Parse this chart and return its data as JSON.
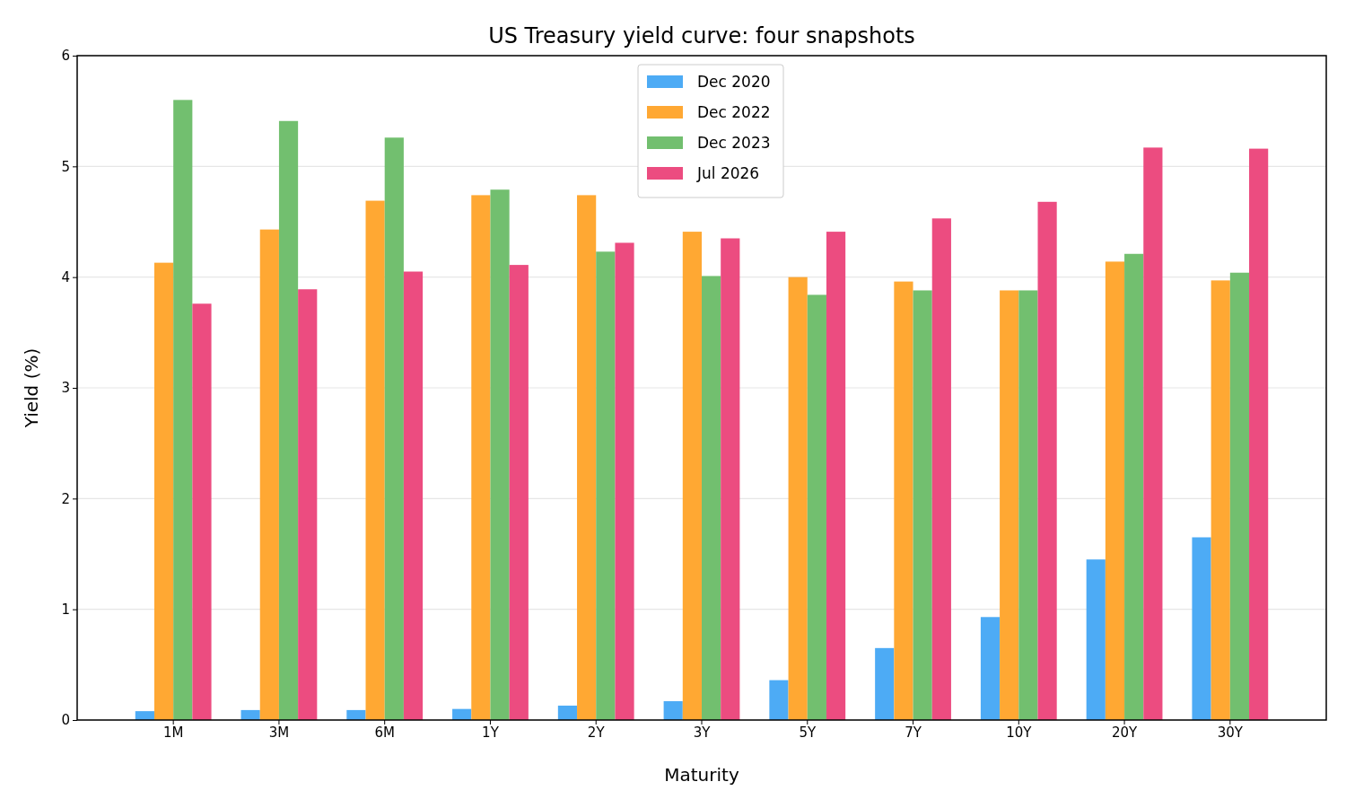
{
  "chart_data": {
    "type": "bar",
    "title": "US Treasury yield curve: four snapshots",
    "xlabel": "Maturity",
    "ylabel": "Yield (%)",
    "categories": [
      "1M",
      "3M",
      "6M",
      "1Y",
      "2Y",
      "3Y",
      "5Y",
      "7Y",
      "10Y",
      "20Y",
      "30Y"
    ],
    "series": [
      {
        "name": "Dec 2020",
        "color": "#4dabf5",
        "values": [
          0.08,
          0.09,
          0.09,
          0.1,
          0.13,
          0.17,
          0.36,
          0.65,
          0.93,
          1.45,
          1.65
        ]
      },
      {
        "name": "Dec 2022",
        "color": "#ffa833",
        "values": [
          4.13,
          4.43,
          4.69,
          4.74,
          4.74,
          4.41,
          4.0,
          3.96,
          3.88,
          4.14,
          3.97
        ]
      },
      {
        "name": "Dec 2023",
        "color": "#72bf6f",
        "values": [
          5.6,
          5.41,
          5.26,
          4.79,
          4.23,
          4.01,
          3.84,
          3.88,
          3.88,
          4.21,
          4.04
        ]
      },
      {
        "name": "Jul 2026",
        "color": "#ec4c80",
        "values": [
          3.76,
          3.89,
          4.05,
          4.11,
          4.31,
          4.35,
          4.41,
          4.53,
          4.68,
          5.17,
          5.16
        ]
      }
    ],
    "ylim": [
      0,
      6
    ],
    "yticks": [
      0,
      1,
      2,
      3,
      4,
      5,
      6
    ],
    "grid": "y",
    "legend": "top"
  }
}
